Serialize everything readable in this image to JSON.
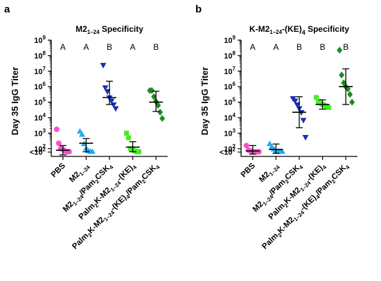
{
  "chart_data": [
    {
      "panel": "a",
      "type": "scatter",
      "title": "M2",
      "title_sub": "1–24",
      "title_suffix": " Specificity",
      "ylabel": "Day 35 IgG Titer",
      "yscale": "log",
      "ylim_exp": [
        1.5,
        9
      ],
      "yticks": [
        {
          "exp": 9,
          "label": "10",
          "sup": "9"
        },
        {
          "exp": 8,
          "label": "10",
          "sup": "8"
        },
        {
          "exp": 7,
          "label": "10",
          "sup": "7"
        },
        {
          "exp": 6,
          "label": "10",
          "sup": "6"
        },
        {
          "exp": 5,
          "label": "10",
          "sup": "5"
        },
        {
          "exp": 4,
          "label": "10",
          "sup": "4"
        },
        {
          "exp": 3,
          "label": "10",
          "sup": "3"
        },
        {
          "exp": 2,
          "label": "10",
          "sup": "2"
        },
        {
          "exp": 1.78,
          "label": "<10",
          "sup": "2"
        }
      ],
      "groups": [
        {
          "label": "PBS",
          "letter": "A",
          "color": "#ff4fc8",
          "marker": "circle",
          "values_log10": [
            3.25,
            2.35,
            2.0,
            1.95,
            1.85,
            1.8,
            1.8
          ],
          "mean_log10": 1.9,
          "sd_log10": [
            1.6,
            2.2
          ]
        },
        {
          "label": "M2₁₋₂₄",
          "letter": "A",
          "color": "#22aaee",
          "marker": "triangle-up",
          "values_log10": [
            3.1,
            2.9,
            2.3,
            2.0,
            1.85,
            1.8,
            1.8
          ],
          "mean_log10": 2.35,
          "sd_log10": [
            1.8,
            2.65
          ]
        },
        {
          "label": "M2₁₋₂₄/Pam₂CSK₄",
          "letter": "B",
          "color": "#1a2fb3",
          "marker": "triangle-down",
          "values_log10": [
            7.4,
            5.95,
            5.7,
            5.3,
            5.1,
            4.85,
            4.6
          ],
          "mean_log10": 5.3,
          "sd_log10": [
            4.85,
            6.35
          ]
        },
        {
          "label": "Palm₂K-M2₁₋₂₄-(KE)₄",
          "letter": "A",
          "color": "#44ee22",
          "marker": "square",
          "values_log10": [
            3.0,
            2.7,
            2.0,
            1.95,
            1.85,
            1.8,
            1.8
          ],
          "mean_log10": 2.1,
          "sd_log10": [
            1.8,
            2.45
          ]
        },
        {
          "label": "Palm₂K-M2₁₋₂₄-(KE)₄/Pam₂CSK₄",
          "letter": "B",
          "color": "#1e8a1e",
          "marker": "diamond",
          "values_log10": [
            5.75,
            5.75,
            5.35,
            5.05,
            4.8,
            4.35,
            3.95
          ],
          "mean_log10": 5.0,
          "sd_log10": [
            4.4,
            5.7
          ]
        }
      ]
    },
    {
      "panel": "b",
      "type": "scatter",
      "title": "K-M2",
      "title_sub": "1–24",
      "title_suffix": "-(KE)₄ Specificity",
      "ylabel": "Day 35 IgG Titer",
      "yscale": "log",
      "ylim_exp": [
        1.5,
        9
      ],
      "yticks": [
        {
          "exp": 9,
          "label": "10",
          "sup": "9"
        },
        {
          "exp": 8,
          "label": "10",
          "sup": "8"
        },
        {
          "exp": 7,
          "label": "10",
          "sup": "7"
        },
        {
          "exp": 6,
          "label": "10",
          "sup": "6"
        },
        {
          "exp": 5,
          "label": "10",
          "sup": "5"
        },
        {
          "exp": 4,
          "label": "10",
          "sup": "4"
        },
        {
          "exp": 3,
          "label": "10",
          "sup": "3"
        },
        {
          "exp": 2,
          "label": "10",
          "sup": "2"
        },
        {
          "exp": 1.78,
          "label": "<10",
          "sup": "2"
        }
      ],
      "groups": [
        {
          "label": "PBS",
          "letter": "A",
          "color": "#ff4fc8",
          "marker": "circle",
          "values_log10": [
            2.2,
            1.9,
            1.85,
            1.8,
            1.8,
            1.8,
            1.8
          ],
          "mean_log10": 1.85,
          "sd_log10": [
            1.65,
            2.2
          ]
        },
        {
          "label": "M2₁₋₂₄",
          "letter": "A",
          "color": "#22aaee",
          "marker": "triangle-up",
          "values_log10": [
            2.3,
            2.1,
            1.95,
            1.85,
            1.8,
            1.8,
            1.8
          ],
          "mean_log10": 1.95,
          "sd_log10": [
            1.7,
            2.3
          ]
        },
        {
          "label": "M2₁₋₂₄/Pam₂CSK₄",
          "letter": "B",
          "color": "#1a2fb3",
          "marker": "triangle-down",
          "values_log10": [
            5.25,
            5.1,
            4.85,
            4.6,
            4.35,
            3.85,
            2.75
          ],
          "mean_log10": 4.35,
          "sd_log10": [
            3.35,
            5.35
          ]
        },
        {
          "label": "Palm₂K-M2₁₋₂₄-(KE)₄",
          "letter": "B",
          "color": "#44ee22",
          "marker": "square",
          "values_log10": [
            5.3,
            5.05,
            4.95,
            4.85,
            4.8,
            4.7,
            4.65
          ],
          "mean_log10": 4.85,
          "sd_log10": [
            4.55,
            5.15
          ]
        },
        {
          "label": "Palm₂K-M2₁₋₂₄-(KE)₄/Pam₂CSK₄",
          "letter": "B",
          "color": "#1e8a1e",
          "marker": "diamond",
          "values_log10": [
            8.35,
            6.75,
            6.25,
            6.0,
            5.85,
            5.5,
            5.0
          ],
          "mean_log10": 6.0,
          "sd_log10": [
            4.85,
            7.15
          ]
        }
      ]
    }
  ],
  "panel_letters": [
    "a",
    "b"
  ]
}
